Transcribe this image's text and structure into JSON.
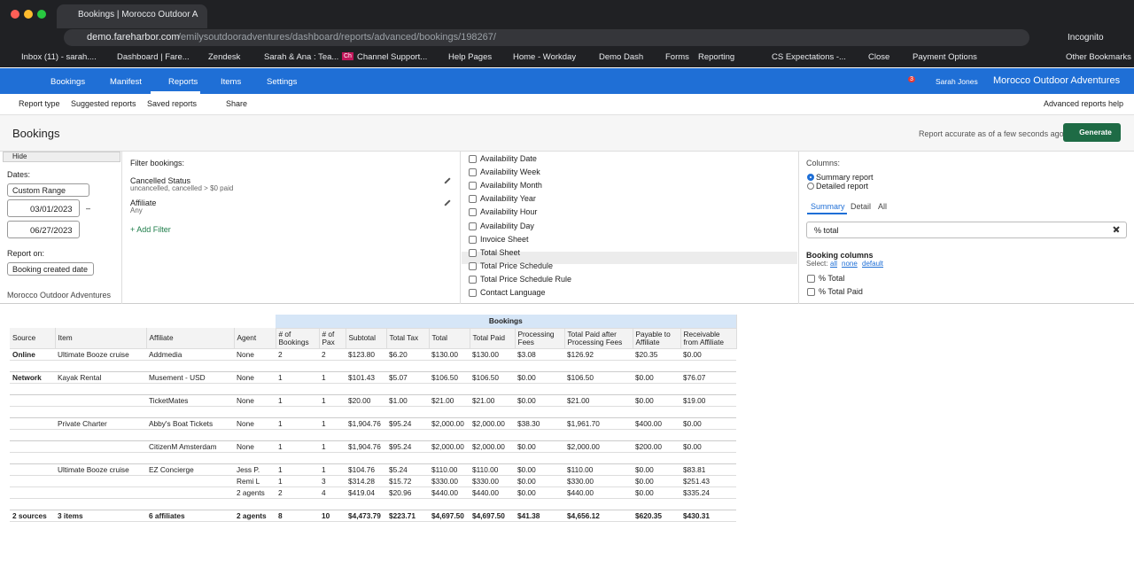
{
  "browser": {
    "tab_title": "Bookings | Morocco Outdoor A",
    "url_host": "demo.fareharbor.com",
    "url_path": "/emilysoutdooradventures/dashboard/reports/advanced/bookings/198267/",
    "profile": "Incognito",
    "icon_text": "Ch",
    "bookmarks": [
      "Inbox (11) - sarah....",
      "Dashboard | Fare...",
      "Zendesk",
      "Sarah & Ana : Tea...",
      "Channel Support...",
      "Help Pages",
      "Home - Workday",
      "Demo Dash",
      "Forms",
      "Reporting",
      "CS Expectations -...",
      "Close",
      "Payment Options"
    ],
    "other_bookmarks": "Other Bookmarks"
  },
  "nav": {
    "items": [
      "Bookings",
      "Manifest",
      "Reports",
      "Items",
      "Settings"
    ],
    "notifications": "3",
    "user": "Sarah Jones",
    "company": "Morocco Outdoor Adventures"
  },
  "toolbar": {
    "items": [
      "Report type",
      "Suggested reports",
      "Saved reports",
      "Share"
    ],
    "help": "Advanced reports help"
  },
  "header": {
    "title": "Bookings",
    "note": "Report accurate as of a few seconds ago",
    "button": "Generate"
  },
  "left": {
    "hide": "Hide",
    "dates_label": "Dates:",
    "range": "Custom Range",
    "start": "03/01/2023",
    "dash": "–",
    "end": "06/27/2023",
    "report_on_label": "Report on:",
    "report_on": "Booking created date",
    "company": "Morocco Outdoor Adventures"
  },
  "filters": {
    "label": "Filter bookings:",
    "items": [
      {
        "name": "Cancelled Status",
        "detail": "uncancelled, cancelled > $0 paid"
      },
      {
        "name": "Affiliate",
        "detail": "Any"
      }
    ],
    "add": "+ Add Filter"
  },
  "fields": [
    "Availability Date",
    "Availability Week",
    "Availability Month",
    "Availability Year",
    "Availability Hour",
    "Availability Day",
    "Invoice Sheet",
    "Total Sheet",
    "Total Price Schedule",
    "Total Price Schedule Rule",
    "Contact Language"
  ],
  "columns": {
    "label": "Columns:",
    "modes": [
      "Summary report",
      "Detailed report"
    ],
    "tabs": [
      "Summary",
      "Detail",
      "All"
    ],
    "search": "% total",
    "section": "Booking columns",
    "select_label": "Select:",
    "select_links": [
      "all",
      "none",
      "default"
    ],
    "checks": [
      "% Total",
      "% Total Paid"
    ]
  },
  "table": {
    "group_header": "Bookings",
    "headers": [
      "Source",
      "Item",
      "Affiliate",
      "Agent",
      "# of Bookings",
      "# of Pax",
      "Subtotal",
      "Total Tax",
      "Total",
      "Total Paid",
      "Processing Fees",
      "Total Paid after Processing Fees",
      "Payable to Affiliate",
      "Receivable from Affiliate"
    ],
    "groups": [
      [
        [
          "Online",
          "Ultimate Booze cruise",
          "Addmedia",
          "None",
          2,
          2,
          "$123.80",
          "$6.20",
          "$130.00",
          "$130.00",
          "$3.08",
          "$126.92",
          "$20.35",
          "$0.00"
        ]
      ],
      [
        [
          "Network",
          "Kayak Rental",
          "Musement - USD",
          "None",
          1,
          1,
          "$101.43",
          "$5.07",
          "$106.50",
          "$106.50",
          "$0.00",
          "$106.50",
          "$0.00",
          "$76.07"
        ]
      ],
      [
        [
          null,
          null,
          "TicketMates",
          "None",
          1,
          1,
          "$20.00",
          "$1.00",
          "$21.00",
          "$21.00",
          "$0.00",
          "$21.00",
          "$0.00",
          "$19.00"
        ]
      ],
      [
        [
          null,
          "Private Charter",
          "Abby's Boat Tickets",
          "None",
          1,
          1,
          "$1,904.76",
          "$95.24",
          "$2,000.00",
          "$2,000.00",
          "$38.30",
          "$1,961.70",
          "$400.00",
          "$0.00"
        ]
      ],
      [
        [
          null,
          null,
          "CitizenM Amsterdam",
          "None",
          1,
          1,
          "$1,904.76",
          "$95.24",
          "$2,000.00",
          "$2,000.00",
          "$0.00",
          "$2,000.00",
          "$200.00",
          "$0.00"
        ]
      ],
      [
        [
          null,
          "Ultimate Booze cruise",
          "EZ Concierge",
          "Jess P.",
          1,
          1,
          "$104.76",
          "$5.24",
          "$110.00",
          "$110.00",
          "$0.00",
          "$110.00",
          "$0.00",
          "$83.81"
        ],
        [
          null,
          null,
          null,
          "Remi L",
          1,
          3,
          "$314.28",
          "$15.72",
          "$330.00",
          "$330.00",
          "$0.00",
          "$330.00",
          "$0.00",
          "$251.43"
        ],
        [
          null,
          null,
          null,
          "2 agents",
          2,
          4,
          "$419.04",
          "$20.96",
          "$440.00",
          "$440.00",
          "$0.00",
          "$440.00",
          "$0.00",
          "$335.24"
        ]
      ]
    ],
    "totals": [
      "2 sources",
      "3 items",
      "6 affiliates",
      "2 agents",
      8,
      10,
      "$4,473.79",
      "$223.71",
      "$4,697.50",
      "$4,697.50",
      "$41.38",
      "$4,656.12",
      "$620.35",
      "$430.31"
    ]
  }
}
